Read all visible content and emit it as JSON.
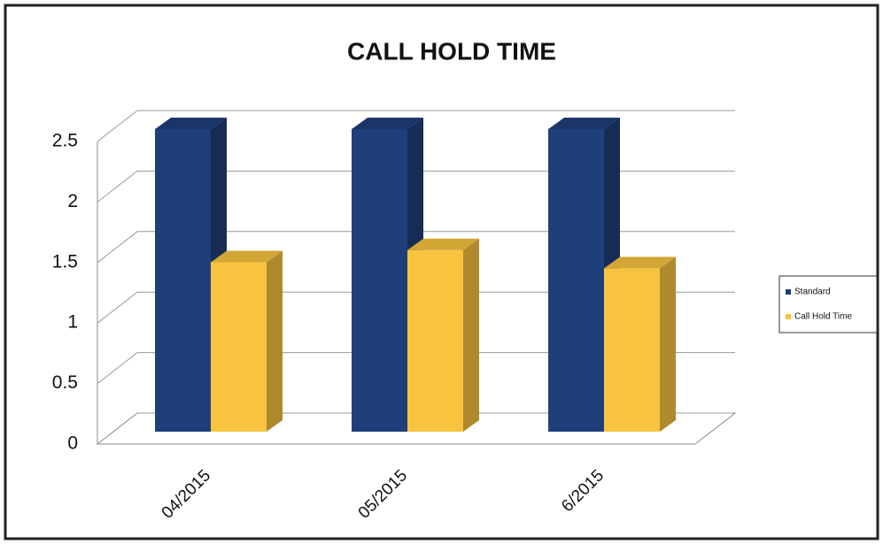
{
  "chart_data": {
    "type": "bar3d",
    "title": "CALL HOLD TIME",
    "categories": [
      "04/2015",
      "05/2015",
      "6/2015"
    ],
    "series": [
      {
        "name": "Standard",
        "color": "#1f3f7a",
        "values": [
          2.5,
          2.5,
          2.5
        ]
      },
      {
        "name": "Call Hold Time",
        "color": "#f8c440",
        "values": [
          1.4,
          1.5,
          1.35
        ]
      }
    ],
    "ylim": [
      0,
      2.5
    ],
    "yticks": [
      0,
      0.5,
      1,
      1.5,
      2,
      2.5
    ],
    "grid": true,
    "legend": "right"
  }
}
